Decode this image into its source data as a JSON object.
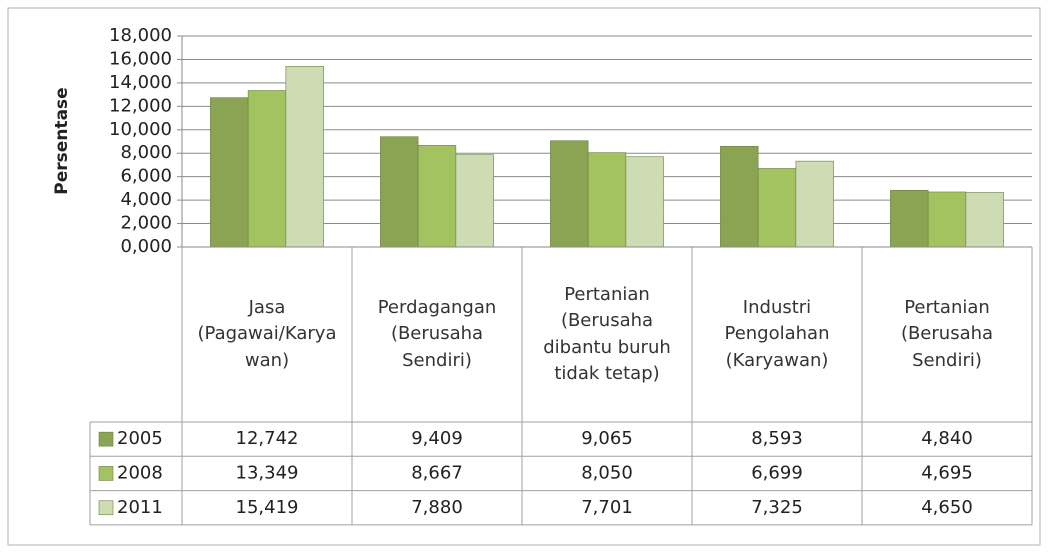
{
  "chart_data": {
    "type": "bar",
    "y_axis_label": "Persentase",
    "categories": [
      "Jasa (Pagawai/Karyawan)",
      "Perdagangan (Berusaha Sendiri)",
      "Pertanian (Berusaha dibantu buruh tidak tetap)",
      "Industri Pengolahan (Karyawan)",
      "Pertanian (Berusaha Sendiri)"
    ],
    "series": [
      {
        "name": "2005",
        "color": "#8aa453",
        "values": [
          12.742,
          9.409,
          9.065,
          8.593,
          4.84
        ],
        "value_labels": [
          "12,742",
          "9,409",
          "9,065",
          "8,593",
          "4,840"
        ]
      },
      {
        "name": "2008",
        "color": "#a3c361",
        "values": [
          13.349,
          8.667,
          8.05,
          6.699,
          4.695
        ],
        "value_labels": [
          "13,349",
          "8,667",
          "8,050",
          "6,699",
          "4,695"
        ]
      },
      {
        "name": "2011",
        "color": "#cddcb3",
        "values": [
          15.419,
          7.88,
          7.701,
          7.325,
          4.65
        ],
        "value_labels": [
          "15,419",
          "7,880",
          "7,701",
          "7,325",
          "4,650"
        ]
      }
    ],
    "ylim": [
      0,
      18
    ],
    "yticks": [
      {
        "value": 0,
        "label": "0,000"
      },
      {
        "value": 2,
        "label": "2,000"
      },
      {
        "value": 4,
        "label": "4,000"
      },
      {
        "value": 6,
        "label": "6,000"
      },
      {
        "value": 8,
        "label": "8,000"
      },
      {
        "value": 10,
        "label": "10,000"
      },
      {
        "value": 12,
        "label": "12,000"
      },
      {
        "value": 14,
        "label": "14,000"
      },
      {
        "value": 16,
        "label": "16,000"
      },
      {
        "value": 18,
        "label": "18,000"
      }
    ],
    "grid": true
  }
}
